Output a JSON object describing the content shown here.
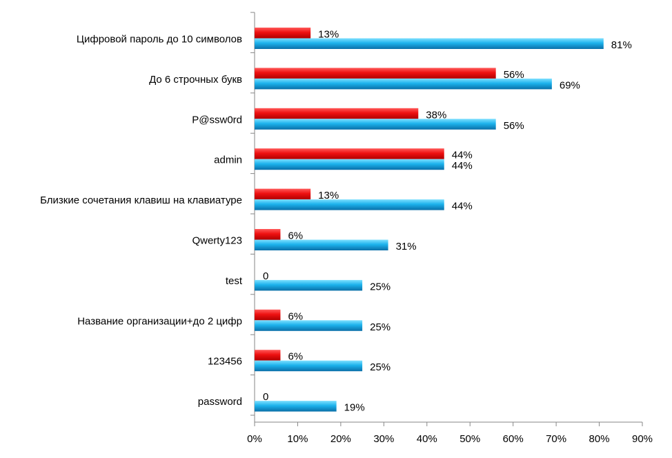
{
  "chart_data": {
    "type": "bar",
    "orientation": "horizontal",
    "categories": [
      "Цифровой пароль до 10 символов",
      "До 6 строчных букв",
      "P@ssw0rd",
      "admin",
      "Близкие сочетания клавиш на клавиатуре",
      "Qwerty123",
      "test",
      "Название организации+до 2 цифр",
      "123456",
      "password"
    ],
    "series": [
      {
        "color": "#e8101a",
        "values": [
          0.13,
          0.56,
          0.38,
          0.44,
          0.13,
          0.06,
          0,
          0.06,
          0.06,
          0
        ],
        "labels": [
          "13%",
          "56%",
          "38%",
          "44%",
          "13%",
          "6%",
          "0",
          "6%",
          "6%",
          "0"
        ]
      },
      {
        "color": "#1fb0e8",
        "values": [
          0.81,
          0.69,
          0.56,
          0.44,
          0.44,
          0.31,
          0.25,
          0.25,
          0.25,
          0.19
        ],
        "labels": [
          "81%",
          "69%",
          "56%",
          "44%",
          "44%",
          "31%",
          "25%",
          "25%",
          "25%",
          "19%"
        ]
      }
    ],
    "xlim": [
      0,
      0.9
    ],
    "x_ticks": [
      0,
      0.1,
      0.2,
      0.3,
      0.4,
      0.5,
      0.6,
      0.7,
      0.8,
      0.9
    ],
    "x_tick_labels": [
      "0%",
      "10%",
      "20%",
      "30%",
      "40%",
      "50%",
      "60%",
      "70%",
      "80%",
      "90%"
    ],
    "grid": false,
    "legend": "none"
  }
}
